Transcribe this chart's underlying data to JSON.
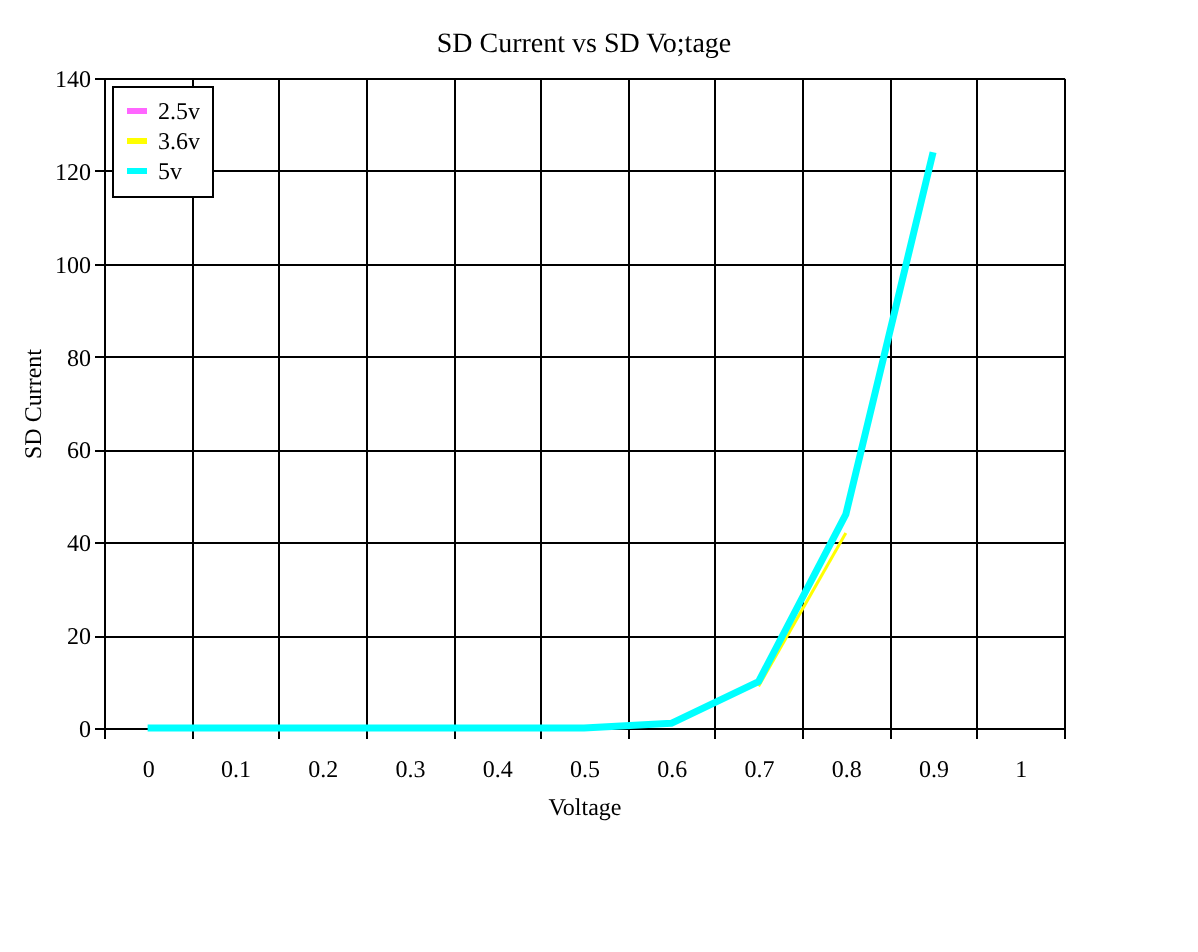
{
  "chart_data": {
    "type": "line",
    "title": "SD Current vs SD Vo;tage",
    "xlabel": "Voltage",
    "ylabel": "SD Current",
    "categories": [
      "0",
      "0.1",
      "0.2",
      "0.3",
      "0.4",
      "0.5",
      "0.6",
      "0.7",
      "0.8",
      "0.9",
      "1"
    ],
    "series": [
      {
        "name": "2.5v",
        "color": "#ff66ff",
        "values": [
          null,
          null,
          null,
          null,
          null,
          null,
          null,
          null,
          null,
          null,
          null
        ]
      },
      {
        "name": "3.6v",
        "color": "#ffff00",
        "values": [
          null,
          null,
          null,
          null,
          null,
          null,
          null,
          9,
          42,
          null,
          null
        ]
      },
      {
        "name": "5v",
        "color": "#00ffff",
        "values": [
          0,
          0,
          0,
          0,
          0,
          0,
          1,
          10,
          46,
          124,
          null
        ]
      }
    ],
    "ylim": [
      0,
      140
    ],
    "yticks": [
      0,
      20,
      40,
      60,
      80,
      100,
      120,
      140
    ],
    "grid": true,
    "legend": "top left",
    "marker": "none",
    "line_style": "solid"
  }
}
